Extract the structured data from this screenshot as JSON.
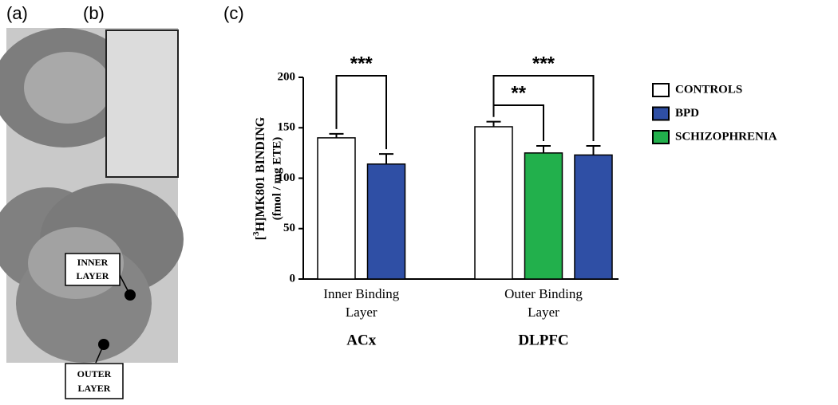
{
  "panel_labels": [
    "(a)",
    "(b)",
    "(c)"
  ],
  "image_labels": {
    "inner": [
      "INNER",
      "LAYER"
    ],
    "outer": [
      "OUTER",
      "LAYER"
    ]
  },
  "chart_data": {
    "type": "bar",
    "y_label": {
      "prefix": "[",
      "sup": "3",
      "rest": "H]MK801 BINDING",
      "unit": "(fmol / mg ETE)"
    },
    "ylim": [
      0,
      200
    ],
    "yticks": [
      0,
      50,
      100,
      150,
      200
    ],
    "series": [
      {
        "name": "CONTROLS",
        "color": "#ffffff"
      },
      {
        "name": "BPD",
        "color": "#2f4fa5"
      },
      {
        "name": "SCHIZOPHRENIA",
        "color": "#22b04c"
      }
    ],
    "groups": [
      {
        "label": [
          "Inner Binding",
          "Layer"
        ],
        "region": "ACx",
        "bars": [
          {
            "series": 0,
            "value": 140,
            "error": 4
          },
          {
            "series": 1,
            "value": 114,
            "error": 10
          }
        ],
        "significance": [
          {
            "from": 0,
            "to": 1,
            "label": "***"
          }
        ]
      },
      {
        "label": [
          "Outer Binding",
          "Layer"
        ],
        "region": "DLPFC",
        "bars": [
          {
            "series": 0,
            "value": 151,
            "error": 5
          },
          {
            "series": 2,
            "value": 125,
            "error": 7
          },
          {
            "series": 1,
            "value": 123,
            "error": 9
          }
        ],
        "significance": [
          {
            "from": 0,
            "to": 1,
            "label": "**"
          },
          {
            "from": 0,
            "to": 2,
            "label": "***"
          }
        ]
      }
    ]
  }
}
